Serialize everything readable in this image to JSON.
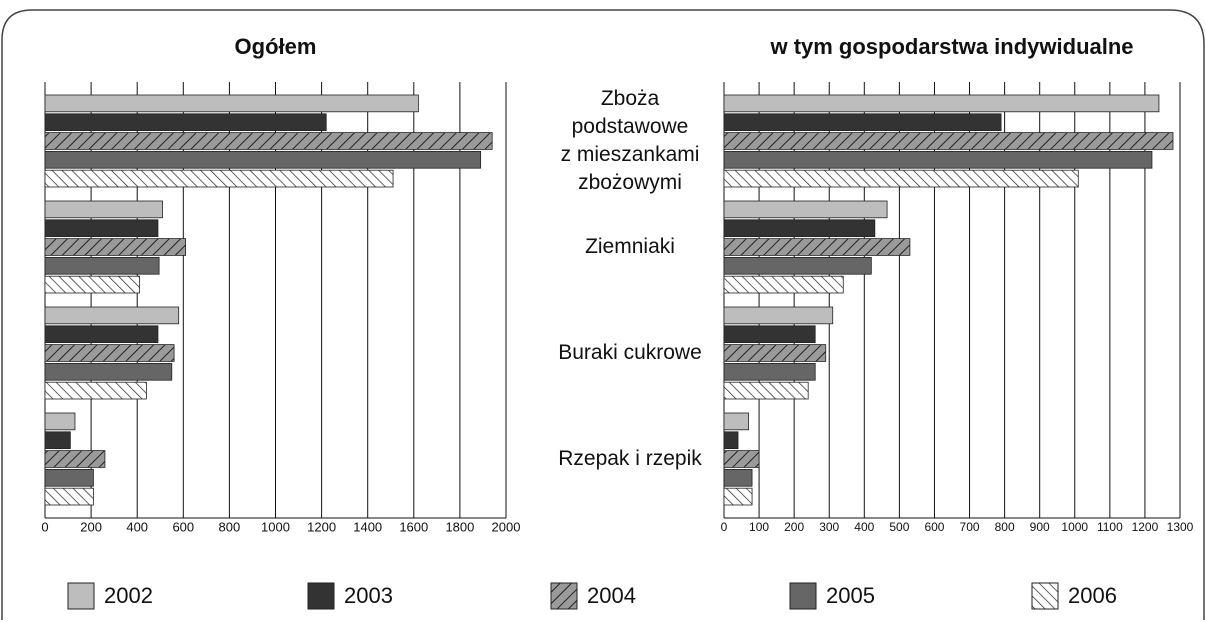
{
  "categories": [
    "Zboża\npodstawowe\nz mieszankami\nzbożowymi",
    "Ziemniaki",
    "Buraki cukrowe",
    "Rzepak i rzepik"
  ],
  "legend": [
    {
      "name": "2002",
      "color": "#bdbdbd",
      "hatch": "none"
    },
    {
      "name": "2003",
      "color": "#333333",
      "hatch": "none"
    },
    {
      "name": "2004",
      "color": "#9a9a9a",
      "hatch": "forward"
    },
    {
      "name": "2005",
      "color": "#666666",
      "hatch": "none"
    },
    {
      "name": "2006",
      "color": "#ffffff",
      "hatch": "back"
    }
  ],
  "chart_data": [
    {
      "type": "bar",
      "orientation": "horizontal",
      "title": "Ogółem",
      "grid": true,
      "xlim": [
        0,
        2000
      ],
      "xticks": [
        0,
        200,
        400,
        600,
        800,
        1000,
        1200,
        1400,
        1600,
        1800,
        2000
      ],
      "series": [
        {
          "values": [
            1620,
            510,
            580,
            130
          ]
        },
        {
          "values": [
            1220,
            490,
            490,
            110
          ]
        },
        {
          "values": [
            1940,
            610,
            560,
            260
          ]
        },
        {
          "values": [
            1890,
            495,
            550,
            210
          ]
        },
        {
          "values": [
            1510,
            410,
            440,
            210
          ]
        }
      ]
    },
    {
      "type": "bar",
      "orientation": "horizontal",
      "title": "w tym gospodarstwa indywidualne",
      "grid": true,
      "xlim": [
        0,
        1300
      ],
      "xticks": [
        0,
        100,
        200,
        300,
        400,
        500,
        600,
        700,
        800,
        900,
        1000,
        1100,
        1200,
        1300
      ],
      "series": [
        {
          "values": [
            1240,
            465,
            310,
            70
          ]
        },
        {
          "values": [
            790,
            430,
            260,
            40
          ]
        },
        {
          "values": [
            1280,
            530,
            290,
            100
          ]
        },
        {
          "values": [
            1220,
            420,
            260,
            80
          ]
        },
        {
          "values": [
            1010,
            340,
            240,
            80
          ]
        }
      ]
    }
  ]
}
